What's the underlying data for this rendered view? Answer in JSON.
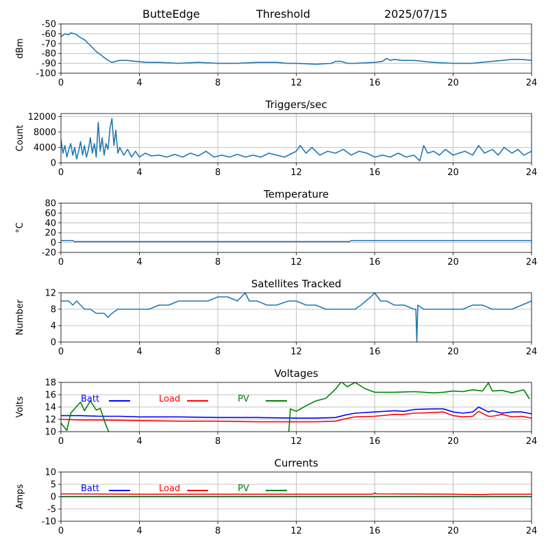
{
  "header": {
    "station": "ButteEdge",
    "label": "Threshold",
    "date": "2025/07/15"
  },
  "colors": {
    "series_blue": "#1f77b4",
    "batt": "#0000ff",
    "load": "#ff0000",
    "pv": "#008000",
    "grid": "#b0b0b0"
  },
  "chart_data": [
    {
      "type": "line",
      "title": "",
      "xlabel": "",
      "ylabel": "dBm",
      "xlim": [
        0,
        24
      ],
      "ylim": [
        -100,
        -50
      ],
      "xticks": [
        "0",
        "4",
        "8",
        "12",
        "16",
        "20",
        "24"
      ],
      "yticks": [
        "-50",
        "-60",
        "-70",
        "-80",
        "-90",
        "-100"
      ],
      "grid": true,
      "series": [
        {
          "color": "#1f77b4",
          "x": [
            0,
            0.2,
            0.4,
            0.5,
            0.7,
            0.8,
            1.0,
            1.2,
            1.4,
            1.6,
            1.8,
            2.0,
            2.2,
            2.4,
            2.6,
            2.8,
            3.0,
            3.4,
            3.8,
            4.4,
            5.0,
            6.0,
            7.0,
            8.0,
            9.0,
            10.0,
            11.0,
            11.5,
            12.0,
            13.0,
            13.8,
            14.0,
            14.3,
            14.6,
            15.0,
            16.0,
            16.4,
            16.6,
            16.8,
            17.0,
            17.4,
            18.0,
            19.0,
            20.0,
            20.6,
            21.0,
            21.4,
            22.0,
            22.5,
            23.0,
            23.5,
            24.0
          ],
          "y": [
            -63,
            -60,
            -61,
            -59,
            -60,
            -61,
            -64,
            -66,
            -70,
            -74,
            -78,
            -81,
            -84,
            -87,
            -89,
            -88,
            -87,
            -87,
            -88,
            -89,
            -89,
            -90,
            -89,
            -90,
            -90,
            -89,
            -89,
            -90,
            -90,
            -91,
            -90,
            -88,
            -88,
            -90,
            -90,
            -89,
            -88,
            -85,
            -87,
            -86,
            -87,
            -87,
            -89,
            -90,
            -90,
            -90,
            -89,
            -88,
            -87,
            -86,
            -86,
            -87
          ]
        }
      ]
    },
    {
      "type": "line",
      "title": "Triggers/sec",
      "xlabel": "",
      "ylabel": "Count",
      "xlim": [
        0,
        24
      ],
      "ylim": [
        0,
        12800
      ],
      "xticks": [
        "0",
        "4",
        "8",
        "12",
        "16",
        "20",
        "24"
      ],
      "yticks": [
        "0",
        "4000",
        "8000",
        "12000"
      ],
      "grid": true,
      "series": [
        {
          "color": "#1f77b4",
          "x": [
            0,
            0.1,
            0.2,
            0.3,
            0.4,
            0.5,
            0.6,
            0.7,
            0.8,
            0.9,
            1.0,
            1.1,
            1.2,
            1.3,
            1.4,
            1.5,
            1.6,
            1.7,
            1.8,
            1.9,
            2.0,
            2.1,
            2.2,
            2.3,
            2.4,
            2.5,
            2.6,
            2.7,
            2.8,
            2.9,
            3.0,
            3.2,
            3.4,
            3.6,
            3.8,
            4.0,
            4.3,
            4.6,
            5.0,
            5.4,
            5.8,
            6.2,
            6.6,
            7.0,
            7.4,
            7.8,
            8.2,
            8.6,
            9.0,
            9.4,
            9.8,
            10.2,
            10.6,
            11.0,
            11.4,
            11.8,
            12.0,
            12.2,
            12.5,
            12.8,
            13.2,
            13.6,
            14.0,
            14.4,
            14.8,
            15.2,
            15.6,
            16.0,
            16.4,
            16.8,
            17.2,
            17.6,
            18.0,
            18.3,
            18.5,
            18.7,
            19.0,
            19.3,
            19.6,
            20.0,
            20.3,
            20.6,
            21.0,
            21.3,
            21.6,
            22.0,
            22.3,
            22.6,
            23.0,
            23.3,
            23.6,
            24.0
          ],
          "y": [
            6000,
            2500,
            4500,
            1500,
            3500,
            5000,
            2000,
            4000,
            1000,
            3000,
            5500,
            2000,
            4500,
            1500,
            3500,
            6500,
            2500,
            5000,
            1500,
            10500,
            3000,
            6500,
            2000,
            5000,
            3500,
            9000,
            11500,
            4500,
            8500,
            2500,
            4000,
            2000,
            3500,
            1500,
            3000,
            1500,
            2500,
            1800,
            2000,
            1500,
            2200,
            1500,
            2500,
            1800,
            3000,
            1500,
            2000,
            1500,
            2200,
            1500,
            2000,
            1500,
            2500,
            2000,
            1500,
            2500,
            3000,
            4500,
            2500,
            4000,
            2000,
            3000,
            2500,
            3500,
            2000,
            3000,
            2500,
            1500,
            2000,
            1500,
            2500,
            1500,
            2000,
            500,
            4500,
            2500,
            3000,
            2000,
            3500,
            2000,
            2500,
            3000,
            2000,
            4500,
            2500,
            3500,
            2000,
            4000,
            2500,
            3500,
            2000,
            3000
          ]
        }
      ]
    },
    {
      "type": "line",
      "title": "Temperature",
      "xlabel": "",
      "ylabel": "°C",
      "xlim": [
        0,
        24
      ],
      "ylim": [
        -20,
        80
      ],
      "xticks": [
        "0",
        "4",
        "8",
        "12",
        "16",
        "20",
        "24"
      ],
      "yticks": [
        "-20",
        "0",
        "20",
        "40",
        "60",
        "80"
      ],
      "grid": true,
      "series": [
        {
          "color": "#1f77b4",
          "x": [
            0,
            0.6,
            0.7,
            14.7,
            14.8,
            24
          ],
          "y": [
            4,
            4,
            2,
            2,
            4,
            4
          ]
        }
      ]
    },
    {
      "type": "line",
      "title": "Satellites Tracked",
      "xlabel": "",
      "ylabel": "Number",
      "xlim": [
        0,
        24
      ],
      "ylim": [
        0,
        12
      ],
      "xticks": [
        "0",
        "4",
        "8",
        "12",
        "16",
        "20",
        "24"
      ],
      "yticks": [
        "0",
        "4",
        "8",
        "12"
      ],
      "grid": true,
      "series": [
        {
          "color": "#1f77b4",
          "x": [
            0,
            0.4,
            0.6,
            0.8,
            1.0,
            1.2,
            1.5,
            1.8,
            2.0,
            2.2,
            2.4,
            2.6,
            2.9,
            3.4,
            4.0,
            4.5,
            5.0,
            5.5,
            6.0,
            6.5,
            7.0,
            7.5,
            8.0,
            8.5,
            9.0,
            9.4,
            9.6,
            10.0,
            10.5,
            11.0,
            11.6,
            12.0,
            12.5,
            13.0,
            13.5,
            14.0,
            14.5,
            15.0,
            15.3,
            15.8,
            16.0,
            16.3,
            16.6,
            17.0,
            17.5,
            18.0,
            18.1,
            18.15,
            18.2,
            18.5,
            19.0,
            19.5,
            20.0,
            20.5,
            21.0,
            21.5,
            22.0,
            22.5,
            23.0,
            23.5,
            24.0
          ],
          "y": [
            10,
            10,
            9,
            10,
            9,
            8,
            8,
            7,
            7,
            7,
            6,
            7,
            8,
            8,
            8,
            8,
            9,
            9,
            10,
            10,
            10,
            10,
            11,
            11,
            10,
            12,
            10,
            10,
            9,
            9,
            10,
            10,
            9,
            9,
            8,
            8,
            8,
            8,
            9,
            11,
            12,
            10,
            10,
            9,
            9,
            8,
            8,
            0,
            9,
            8,
            8,
            8,
            8,
            8,
            9,
            9,
            8,
            8,
            8,
            9,
            10
          ]
        }
      ]
    },
    {
      "type": "line",
      "title": "Voltages",
      "xlabel": "",
      "ylabel": "Volts",
      "xlim": [
        0,
        24
      ],
      "ylim": [
        10,
        18
      ],
      "xticks": [
        "0",
        "4",
        "8",
        "12",
        "16",
        "20",
        "24"
      ],
      "yticks": [
        "10",
        "12",
        "14",
        "16",
        "18"
      ],
      "grid": true,
      "legend": "top-left",
      "series": [
        {
          "name": "Batt",
          "color": "#0000ff",
          "x": [
            0,
            1,
            2,
            3,
            4,
            6,
            8,
            10,
            12,
            13,
            14,
            14.5,
            15,
            16,
            17,
            17.5,
            18,
            19,
            19.5,
            20,
            20.5,
            21,
            21.3,
            21.8,
            22,
            22.5,
            23,
            23.5,
            24
          ],
          "y": [
            12.6,
            12.6,
            12.5,
            12.5,
            12.4,
            12.4,
            12.3,
            12.3,
            12.2,
            12.2,
            12.3,
            12.7,
            13.0,
            13.2,
            13.4,
            13.3,
            13.6,
            13.7,
            13.7,
            13.2,
            13.0,
            13.2,
            14.0,
            13.2,
            13.4,
            13.0,
            13.2,
            13.2,
            12.9
          ]
        },
        {
          "name": "Load",
          "color": "#ff0000",
          "x": [
            0,
            1,
            2,
            4,
            6,
            8,
            10,
            12,
            13,
            14,
            14.5,
            15,
            16,
            17,
            17.5,
            18,
            19,
            19.5,
            20,
            20.5,
            21,
            21.3,
            21.8,
            22,
            22.5,
            23,
            23.5,
            24
          ],
          "y": [
            12.0,
            11.9,
            11.9,
            11.8,
            11.7,
            11.7,
            11.6,
            11.6,
            11.6,
            11.7,
            12.1,
            12.4,
            12.5,
            12.8,
            12.8,
            13.0,
            13.1,
            13.2,
            12.6,
            12.4,
            12.5,
            13.3,
            12.5,
            12.5,
            12.8,
            12.4,
            12.5,
            12.2
          ]
        },
        {
          "name": "PV",
          "color": "#008000",
          "x": [
            0,
            0.3,
            0.5,
            0.8,
            1.0,
            1.2,
            1.5,
            1.8,
            2.0,
            2.3,
            2.5,
            2.6,
            2.7,
            11.6,
            11.7,
            12.0,
            12.5,
            13.0,
            13.5,
            14.0,
            14.3,
            14.6,
            15.0,
            15.5,
            16.0,
            17.0,
            18.0,
            19.0,
            19.5,
            20.0,
            20.5,
            21.0,
            21.5,
            21.8,
            22.0,
            22.5,
            23.0,
            23.6,
            23.9
          ],
          "y": [
            11.4,
            10.2,
            13.0,
            14.1,
            14.8,
            13.4,
            15.0,
            13.5,
            13.8,
            11.0,
            9.5,
            9.0,
            9.0,
            9.0,
            13.7,
            13.3,
            14.2,
            15.0,
            15.4,
            16.9,
            18.1,
            17.3,
            18.0,
            17.0,
            16.4,
            16.4,
            16.5,
            16.3,
            16.4,
            16.6,
            16.5,
            16.8,
            16.6,
            17.9,
            16.6,
            16.7,
            16.3,
            16.8,
            15.3
          ]
        }
      ]
    },
    {
      "type": "line",
      "title": "Currents",
      "xlabel": "",
      "ylabel": "Amps",
      "xlim": [
        0,
        24
      ],
      "ylim": [
        -10,
        10
      ],
      "xticks": [
        "0",
        "4",
        "8",
        "12",
        "16",
        "20",
        "24"
      ],
      "yticks": [
        "-10",
        "-5",
        "0",
        "5",
        "10"
      ],
      "grid": true,
      "legend": "top-left",
      "series": [
        {
          "name": "Batt",
          "color": "#0000ff",
          "x": [
            0,
            24
          ],
          "y": [
            0,
            0
          ]
        },
        {
          "name": "Load",
          "color": "#ff0000",
          "x": [
            0,
            4,
            8,
            12,
            15.9,
            16.0,
            16.1,
            20,
            21.5,
            22,
            24
          ],
          "y": [
            1.1,
            1.0,
            1.0,
            1.0,
            1.0,
            1.5,
            1.1,
            1.0,
            0.8,
            1.0,
            1.0
          ]
        },
        {
          "name": "PV",
          "color": "#008000",
          "x": [
            0,
            24
          ],
          "y": [
            0,
            0
          ]
        }
      ]
    }
  ]
}
